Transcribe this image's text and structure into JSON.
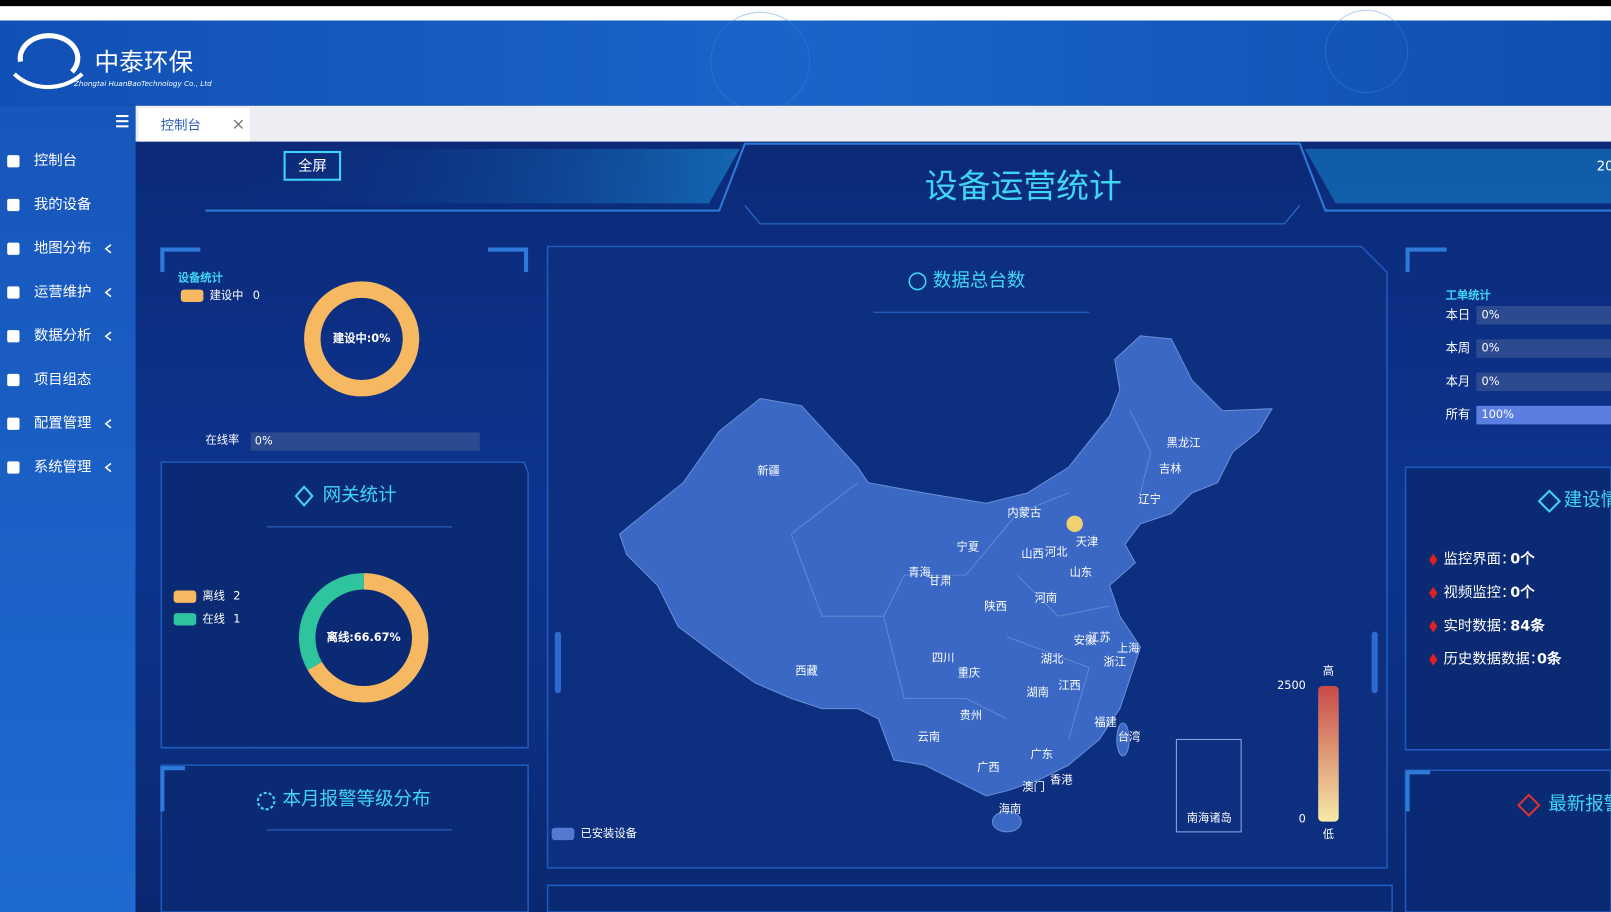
{
  "logo": {
    "name": "中泰环保",
    "subtitle": "Zhongtai HuanBaoTechnology Co., Ltd"
  },
  "tab": "控制台",
  "sidebar": [
    {
      "label": "控制台",
      "submenu": false
    },
    {
      "label": "我的设备",
      "submenu": false
    },
    {
      "label": "地图分布",
      "submenu": true
    },
    {
      "label": "运营维护",
      "submenu": true
    },
    {
      "label": "数据分析",
      "submenu": true
    },
    {
      "label": "项目组态",
      "submenu": false
    },
    {
      "label": "配置管理",
      "submenu": true
    },
    {
      "label": "系统管理",
      "submenu": true
    }
  ],
  "fullscreen_button": "全屏",
  "title": "设备运营统计",
  "date_fragment": "20",
  "device_stats": {
    "title": "设备统计",
    "legend": [
      {
        "name": "建设中",
        "value": 0,
        "color": "#f7b862"
      }
    ],
    "center_label": "建设中:0%",
    "online_rate": {
      "label": "在线率",
      "value": 0,
      "value_label": "0%"
    }
  },
  "gateway_stats": {
    "title": "网关统计",
    "legend": [
      {
        "name": "离线",
        "value": 2,
        "color": "#f7b862"
      },
      {
        "name": "在线",
        "value": 1,
        "color": "#2ec49e"
      }
    ],
    "center_label": "离线:66.67%"
  },
  "alarm_panel": {
    "title": "本月报警等级分布"
  },
  "map": {
    "title": "数据总台数",
    "legend": "已安装设备",
    "inset_label": "南海诸岛",
    "provinces": [
      "新疆",
      "西藏",
      "青海",
      "甘肃",
      "宁夏",
      "内蒙古",
      "陕西",
      "四川",
      "重庆",
      "云南",
      "贵州",
      "广西",
      "广东",
      "海南",
      "湖南",
      "湖北",
      "江西",
      "河南",
      "山西",
      "河北",
      "天津",
      "山东",
      "安徽",
      "江苏",
      "上海",
      "浙江",
      "福建",
      "台湾",
      "香港",
      "澳门",
      "辽宁",
      "吉林",
      "黑龙江"
    ],
    "visual_map": {
      "max": 2500,
      "min": 0,
      "high_label": "高",
      "low_label": "低"
    }
  },
  "work_orders": {
    "title": "工单统计",
    "rows": [
      {
        "label": "本日",
        "value": 0,
        "value_label": "0%"
      },
      {
        "label": "本周",
        "value": 0,
        "value_label": "0%"
      },
      {
        "label": "本月",
        "value": 0,
        "value_label": "0%"
      },
      {
        "label": "所有",
        "value": 100,
        "value_label": "100%"
      }
    ]
  },
  "construction": {
    "title": "建设情",
    "items": [
      {
        "label": "监控界面：",
        "value": "0个"
      },
      {
        "label": "视频监控：",
        "value": "0个"
      },
      {
        "label": "实时数据：",
        "value": "84条"
      },
      {
        "label": "历史数据数据：",
        "value": "0条"
      }
    ]
  },
  "latest_alarm": {
    "title": "最新报警"
  }
}
